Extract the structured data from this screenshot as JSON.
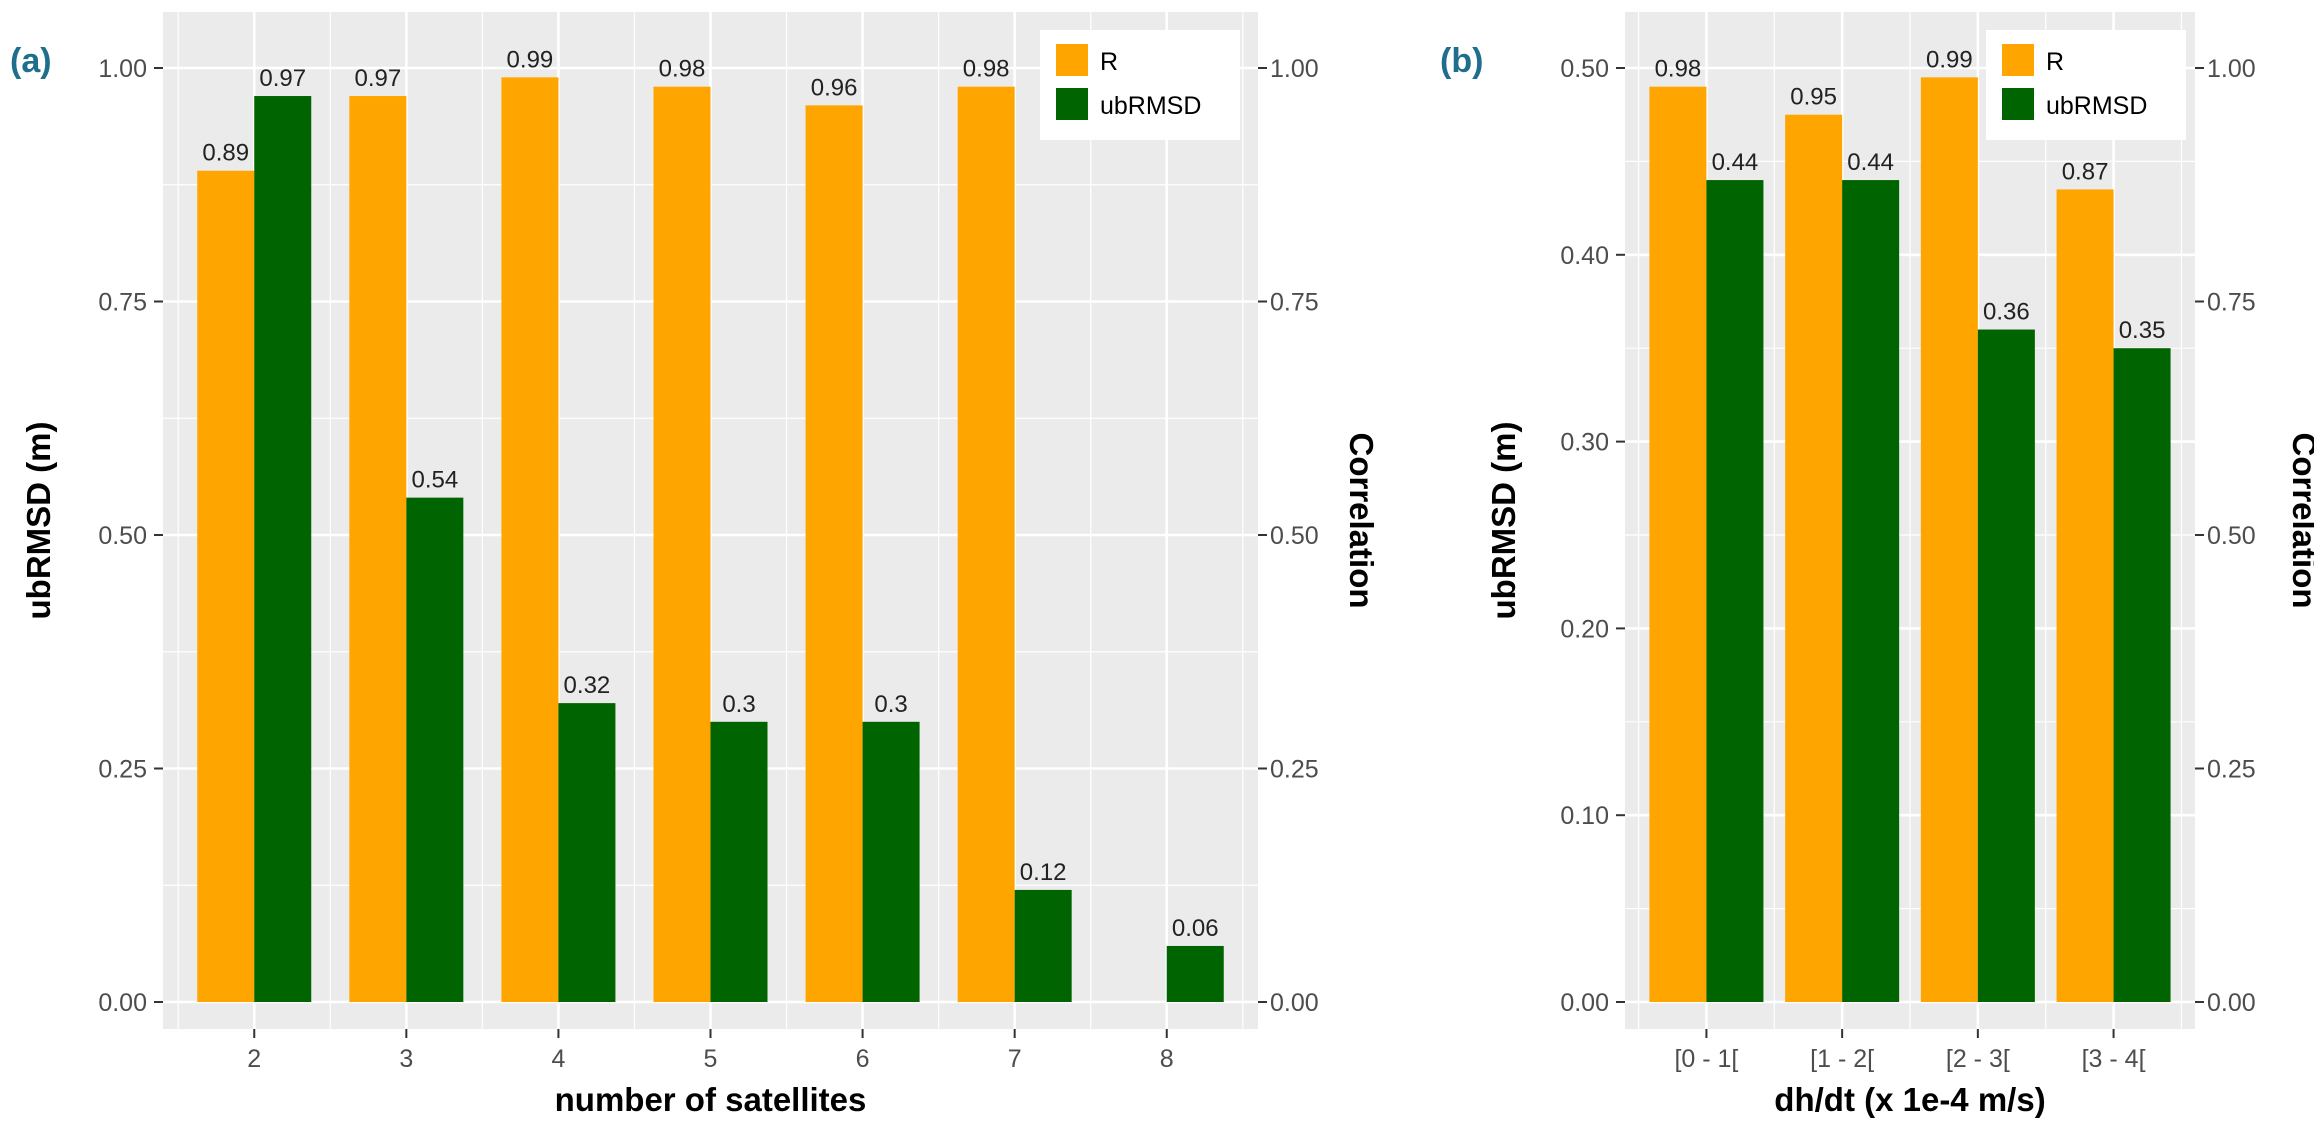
{
  "colors": {
    "R": "#FFA500",
    "ubRMSD": "#006400",
    "panel_bg": "#EBEBEB",
    "grid": "#FFFFFF",
    "panel_label": "#1F6E8C"
  },
  "chart_data": [
    {
      "type": "bar",
      "panel_label": "(a)",
      "xlabel": "number of satellites",
      "ylabel": "ubRMSD (m)",
      "y2label": "Correlation",
      "categories": [
        "2",
        "3",
        "4",
        "5",
        "6",
        "7",
        "8"
      ],
      "ylim": [
        0,
        1.0
      ],
      "y2lim": [
        0,
        1.0
      ],
      "yticks": [
        "0.00",
        "0.25",
        "0.50",
        "0.75",
        "1.00"
      ],
      "y2ticks": [
        "0.00",
        "0.25",
        "0.50",
        "0.75",
        "1.00"
      ],
      "legend_position": "top-right",
      "series": [
        {
          "name": "R",
          "color": "#FFA500",
          "values": [
            0.89,
            0.97,
            0.99,
            0.98,
            0.96,
            0.98,
            null
          ],
          "labels": [
            "0.89",
            "0.97",
            "0.99",
            "0.98",
            "0.96",
            "0.98",
            ""
          ]
        },
        {
          "name": "ubRMSD",
          "color": "#006400",
          "values": [
            0.97,
            0.54,
            0.32,
            0.3,
            0.3,
            0.12,
            0.06
          ],
          "labels": [
            "0.97",
            "0.54",
            "0.32",
            "0.3",
            "0.3",
            "0.12",
            "0.06"
          ]
        }
      ]
    },
    {
      "type": "bar",
      "panel_label": "(b)",
      "xlabel": "dh/dt (x 1e-4 m/s)",
      "ylabel": "ubRMSD (m)",
      "y2label": "Correlation",
      "categories": [
        "[0 - 1[",
        "[1 - 2[",
        "[2 - 3[",
        "[3 - 4["
      ],
      "ylim": [
        0,
        0.5
      ],
      "y2lim": [
        0,
        1.0
      ],
      "yticks": [
        "0.00",
        "0.10",
        "0.20",
        "0.30",
        "0.40",
        "0.50"
      ],
      "y2ticks": [
        "0.00",
        "0.25",
        "0.50",
        "0.75",
        "1.00"
      ],
      "legend_position": "top-right",
      "series": [
        {
          "name": "R",
          "color": "#FFA500",
          "values": [
            0.98,
            0.95,
            0.99,
            0.87
          ],
          "labels": [
            "0.98",
            "0.95",
            "0.99",
            "0.87"
          ]
        },
        {
          "name": "ubRMSD",
          "color": "#006400",
          "values": [
            0.44,
            0.44,
            0.36,
            0.35
          ],
          "labels": [
            "0.44",
            "0.44",
            "0.36",
            "0.35"
          ]
        }
      ]
    }
  ]
}
